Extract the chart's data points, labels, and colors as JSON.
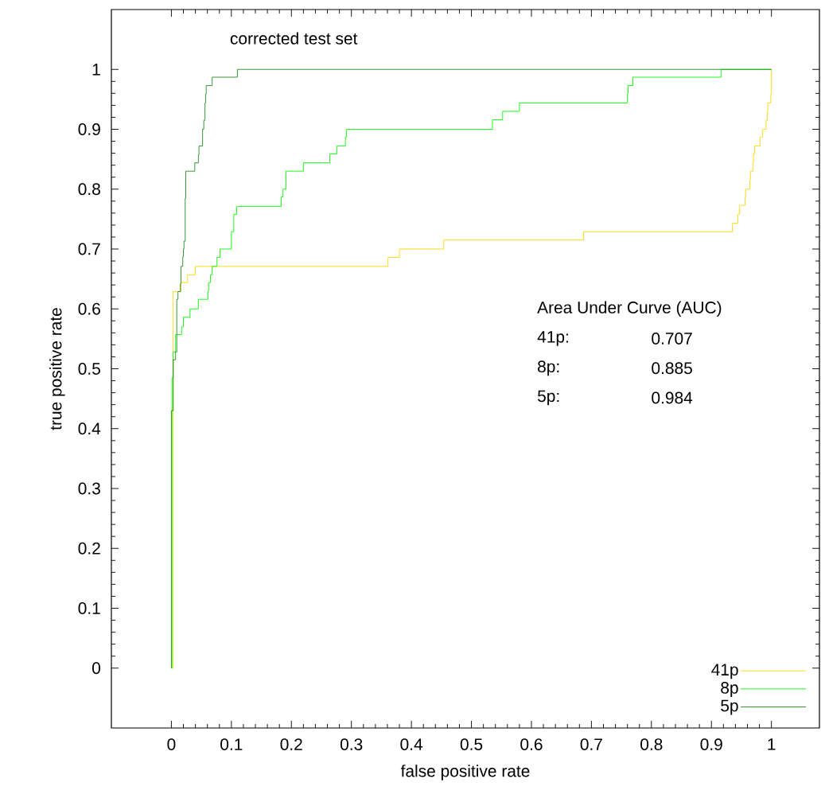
{
  "chart_data": {
    "type": "step",
    "title": "corrected test set",
    "xlabel": "false positive rate",
    "ylabel": "true positive rate",
    "xlim": [
      -0.1,
      1.08
    ],
    "ylim": [
      -0.1,
      1.1
    ],
    "xticks": [
      0,
      0.1,
      0.2,
      0.3,
      0.4,
      0.5,
      0.6,
      0.7,
      0.8,
      0.9,
      1
    ],
    "yticks": [
      0,
      0.1,
      0.2,
      0.3,
      0.4,
      0.5,
      0.6,
      0.7,
      0.8,
      0.9,
      1
    ],
    "grid": false,
    "legend": "bottom right",
    "annotations": [
      "Area Under Curve (AUC)",
      "41p:",
      "0.707",
      "8p:",
      "0.885",
      "5p:",
      "0.984"
    ],
    "series": [
      {
        "name": "41p",
        "color": "#ffd700",
        "x": [
          0,
          0.003,
          0.016,
          0.027,
          0.04,
          0.361,
          0.38,
          0.454,
          0.687,
          0.935,
          0.944,
          0.947,
          0.956,
          0.957,
          0.964,
          0.965,
          0.969,
          0.97,
          0.972,
          0.981,
          0.985,
          0.991,
          0.993,
          0.994,
          0.999,
          1
        ],
        "values": [
          0,
          0.629,
          0.644,
          0.657,
          0.671,
          0.686,
          0.7,
          0.715,
          0.729,
          0.743,
          0.758,
          0.773,
          0.787,
          0.8,
          0.815,
          0.83,
          0.844,
          0.859,
          0.872,
          0.887,
          0.9,
          0.915,
          0.93,
          0.944,
          0.959,
          1
        ]
      },
      {
        "name": "8p",
        "color": "#00ff00",
        "x": [
          0,
          0.001,
          0.003,
          0.007,
          0.017,
          0.02,
          0.031,
          0.045,
          0.061,
          0.062,
          0.065,
          0.068,
          0.076,
          0.081,
          0.1,
          0.104,
          0.109,
          0.183,
          0.186,
          0.191,
          0.22,
          0.264,
          0.276,
          0.29,
          0.292,
          0.535,
          0.552,
          0.58,
          0.76,
          0.761,
          0.769,
          0.916,
          1
        ],
        "values": [
          0,
          0.485,
          0.528,
          0.557,
          0.57,
          0.586,
          0.6,
          0.616,
          0.629,
          0.644,
          0.657,
          0.671,
          0.686,
          0.7,
          0.729,
          0.758,
          0.771,
          0.787,
          0.8,
          0.83,
          0.844,
          0.859,
          0.872,
          0.887,
          0.9,
          0.916,
          0.93,
          0.944,
          0.959,
          0.973,
          0.987,
          1,
          1
        ]
      },
      {
        "name": "5p",
        "color": "#228b22",
        "x": [
          0,
          0,
          0.003,
          0.007,
          0.009,
          0.011,
          0.015,
          0.016,
          0.019,
          0.02,
          0.021,
          0.023,
          0.024,
          0.039,
          0.045,
          0.046,
          0.052,
          0.054,
          0.056,
          0.057,
          0.058,
          0.068,
          0.11,
          1
        ],
        "values": [
          0,
          0.43,
          0.515,
          0.528,
          0.616,
          0.629,
          0.642,
          0.671,
          0.687,
          0.7,
          0.713,
          0.785,
          0.83,
          0.844,
          0.857,
          0.872,
          0.9,
          0.915,
          0.944,
          0.959,
          0.973,
          0.987,
          1,
          1
        ]
      }
    ]
  }
}
